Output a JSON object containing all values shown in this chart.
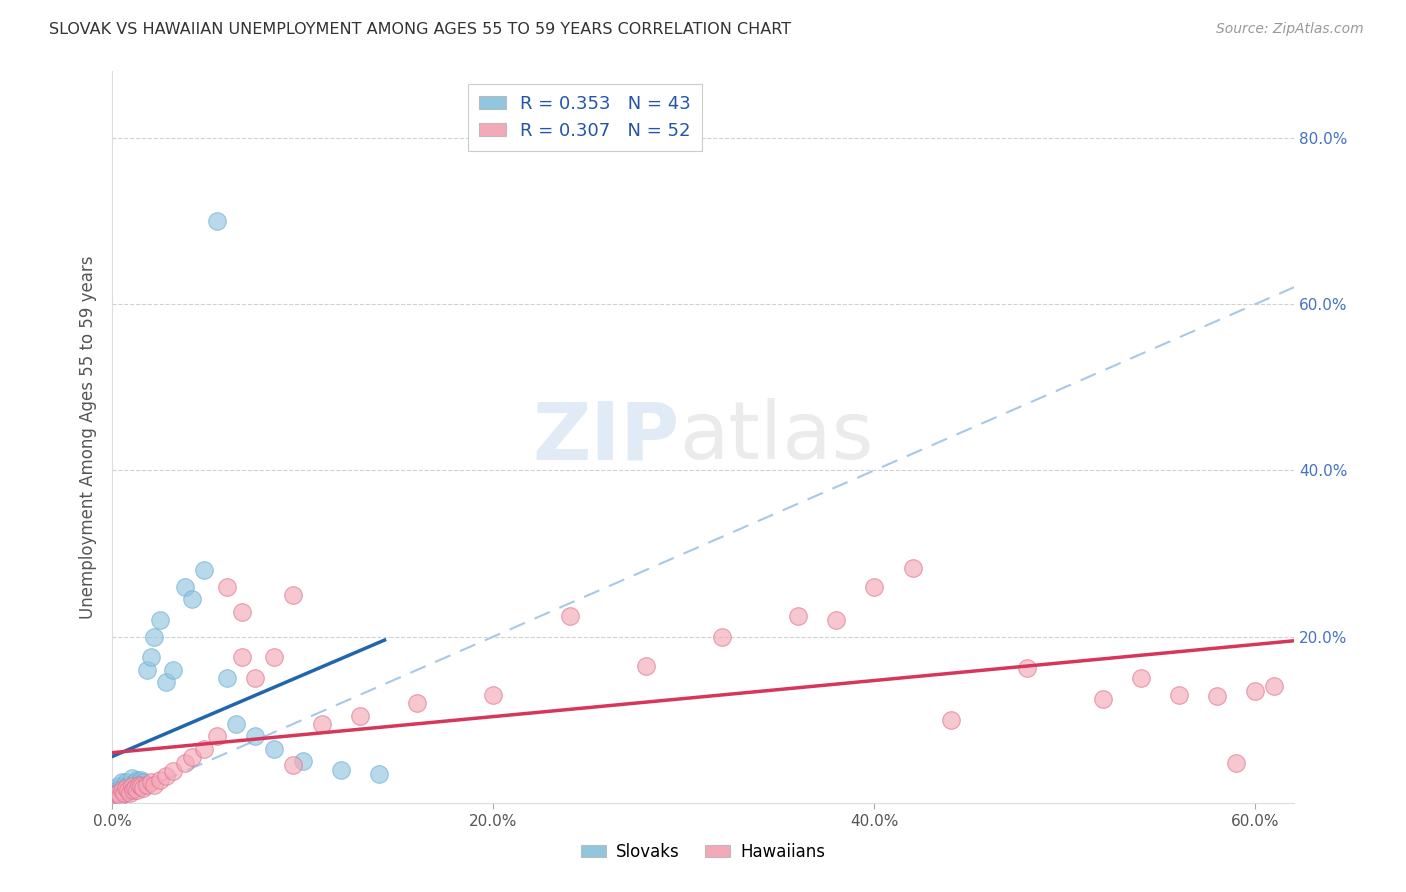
{
  "title": "SLOVAK VS HAWAIIAN UNEMPLOYMENT AMONG AGES 55 TO 59 YEARS CORRELATION CHART",
  "source": "Source: ZipAtlas.com",
  "ylabel": "Unemployment Among Ages 55 to 59 years",
  "xlim": [
    0.0,
    0.62
  ],
  "ylim": [
    0.0,
    0.88
  ],
  "slovak_color": "#92c5de",
  "slovak_edge_color": "#6baed6",
  "hawaiian_color": "#f4a9b8",
  "hawaiian_edge_color": "#e07090",
  "slovak_line_color": "#2166ac",
  "hawaiian_line_color": "#d6365a",
  "diag_line_color": "#a8c8e8",
  "slovak_R": 0.353,
  "slovak_N": 43,
  "hawaiian_R": 0.307,
  "hawaiian_N": 52,
  "background_color": "#ffffff",
  "grid_color": "#cccccc",
  "slovak_x": [
    0.001,
    0.002,
    0.002,
    0.003,
    0.003,
    0.004,
    0.004,
    0.005,
    0.005,
    0.006,
    0.006,
    0.007,
    0.007,
    0.008,
    0.008,
    0.009,
    0.01,
    0.01,
    0.011,
    0.012,
    0.013,
    0.013,
    0.014,
    0.015,
    0.015,
    0.016,
    0.018,
    0.02,
    0.022,
    0.025,
    0.028,
    0.032,
    0.038,
    0.042,
    0.048,
    0.055,
    0.06,
    0.065,
    0.075,
    0.085,
    0.1,
    0.12,
    0.14
  ],
  "slovak_y": [
    0.008,
    0.01,
    0.015,
    0.012,
    0.02,
    0.01,
    0.018,
    0.015,
    0.025,
    0.015,
    0.02,
    0.012,
    0.025,
    0.018,
    0.022,
    0.015,
    0.02,
    0.03,
    0.018,
    0.025,
    0.028,
    0.02,
    0.025,
    0.028,
    0.02,
    0.025,
    0.16,
    0.175,
    0.2,
    0.22,
    0.145,
    0.16,
    0.26,
    0.245,
    0.28,
    0.7,
    0.15,
    0.095,
    0.08,
    0.065,
    0.05,
    0.04,
    0.035
  ],
  "hawaiian_x": [
    0.002,
    0.003,
    0.004,
    0.005,
    0.006,
    0.007,
    0.008,
    0.009,
    0.01,
    0.011,
    0.012,
    0.013,
    0.014,
    0.015,
    0.016,
    0.018,
    0.02,
    0.022,
    0.025,
    0.028,
    0.032,
    0.038,
    0.042,
    0.048,
    0.055,
    0.06,
    0.068,
    0.075,
    0.085,
    0.095,
    0.11,
    0.13,
    0.16,
    0.2,
    0.24,
    0.28,
    0.32,
    0.36,
    0.4,
    0.44,
    0.48,
    0.52,
    0.54,
    0.56,
    0.58,
    0.59,
    0.6,
    0.61,
    0.068,
    0.095,
    0.38,
    0.42
  ],
  "hawaiian_y": [
    0.01,
    0.012,
    0.008,
    0.015,
    0.012,
    0.018,
    0.015,
    0.012,
    0.02,
    0.015,
    0.018,
    0.015,
    0.022,
    0.02,
    0.018,
    0.022,
    0.025,
    0.022,
    0.028,
    0.032,
    0.038,
    0.048,
    0.055,
    0.065,
    0.08,
    0.26,
    0.23,
    0.15,
    0.175,
    0.045,
    0.095,
    0.105,
    0.12,
    0.13,
    0.225,
    0.165,
    0.2,
    0.225,
    0.26,
    0.1,
    0.162,
    0.125,
    0.15,
    0.13,
    0.128,
    0.048,
    0.135,
    0.14,
    0.175,
    0.25,
    0.22,
    0.282
  ]
}
